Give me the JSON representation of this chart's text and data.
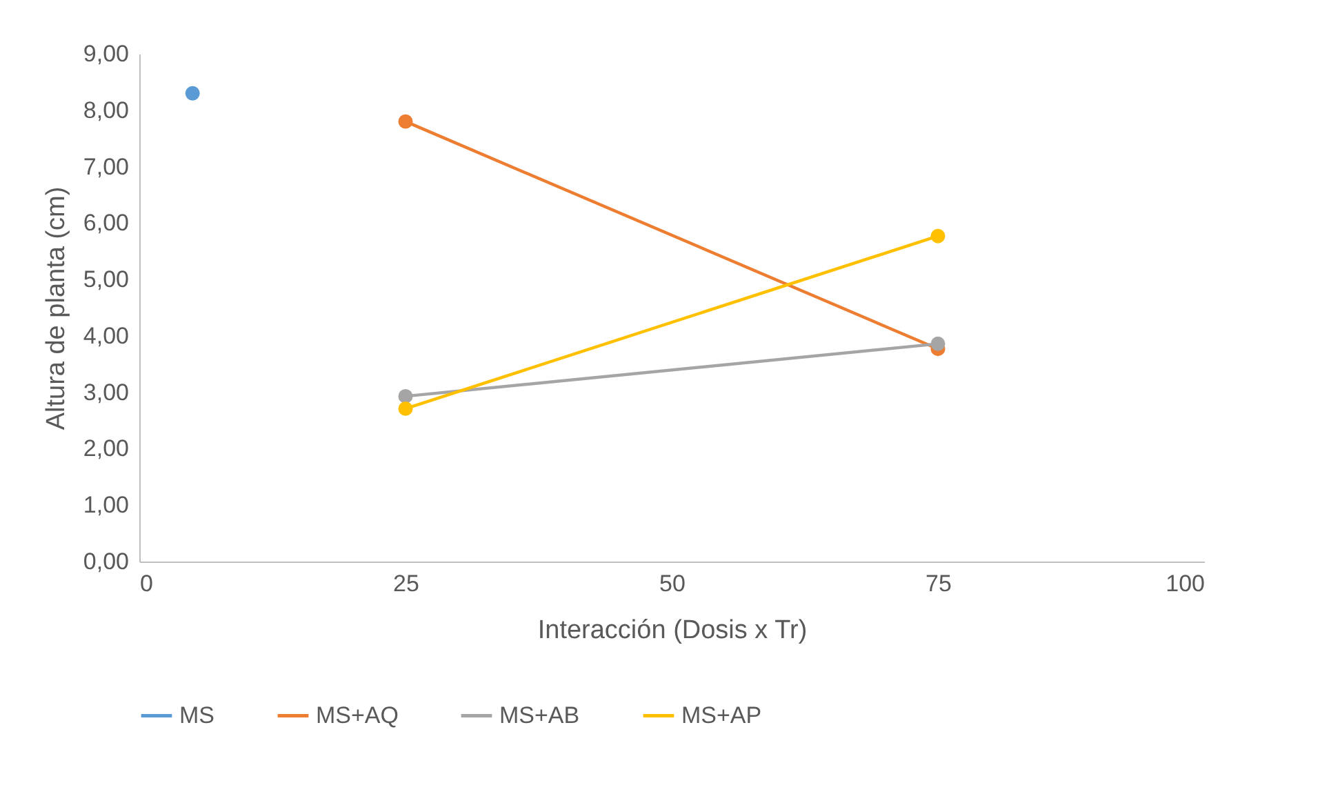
{
  "chart_data": {
    "type": "line",
    "xlabel": "Interacción (Dosis x Tr)",
    "ylabel": "Altura de planta (cm)",
    "xlim": [
      0,
      100
    ],
    "xticks": [
      0,
      25,
      50,
      75,
      100
    ],
    "ylim": [
      0,
      9
    ],
    "yticks": [
      {
        "value": 0,
        "label": "0,00"
      },
      {
        "value": 1,
        "label": "1,00"
      },
      {
        "value": 2,
        "label": "2,00"
      },
      {
        "value": 3,
        "label": "3,00"
      },
      {
        "value": 4,
        "label": "4,00"
      },
      {
        "value": 5,
        "label": "5,00"
      },
      {
        "value": 6,
        "label": "6,00"
      },
      {
        "value": 7,
        "label": "7,00"
      },
      {
        "value": 8,
        "label": "8,00"
      },
      {
        "value": 9,
        "label": "9,00"
      }
    ],
    "grid": false,
    "legend": "bottom",
    "marker": "circle",
    "line_style": "solid",
    "series": [
      {
        "name": "MS",
        "color": "#5b9bd5",
        "x": [
          5
        ],
        "values": [
          8.3
        ]
      },
      {
        "name": "MS+AQ",
        "color": "#ed7d31",
        "x": [
          25,
          75
        ],
        "values": [
          7.8,
          3.77
        ]
      },
      {
        "name": "MS+AB",
        "color": "#a5a5a5",
        "x": [
          25,
          75
        ],
        "values": [
          2.93,
          3.86
        ]
      },
      {
        "name": "MS+AP",
        "color": "#ffc000",
        "x": [
          25,
          75
        ],
        "values": [
          2.71,
          5.77
        ]
      }
    ]
  }
}
